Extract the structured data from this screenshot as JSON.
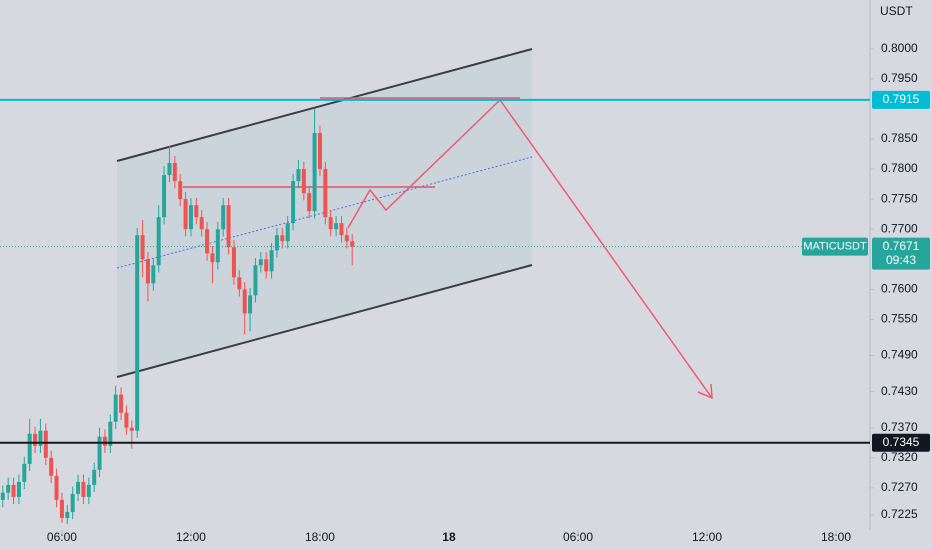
{
  "chart_data": {
    "type": "candlestick",
    "symbol": "MATICUSDT",
    "currency": "USDT",
    "x": [
      3.25,
      3.5,
      3.75,
      4,
      4.25,
      4.5,
      4.75,
      5,
      5.25,
      5.5,
      5.75,
      6,
      6.25,
      6.5,
      6.75,
      7,
      7.25,
      7.5,
      7.75,
      8,
      8.25,
      8.5,
      8.75,
      9,
      9.25,
      9.5,
      9.75,
      10,
      10.25,
      10.5,
      10.75,
      11,
      11.25,
      11.5,
      11.75,
      12,
      12.25,
      12.5,
      12.75,
      13,
      13.25,
      13.5,
      13.75,
      14,
      14.25,
      14.5,
      14.75,
      15,
      15.25,
      15.5,
      15.75,
      16,
      16.25,
      16.5,
      16.75,
      17,
      17.25,
      17.5,
      17.75,
      18,
      18.25,
      18.5,
      18.75,
      19,
      19.25,
      19.5
    ],
    "open": [
      0.725,
      0.7262,
      0.7275,
      0.7255,
      0.728,
      0.731,
      0.736,
      0.734,
      0.7365,
      0.732,
      0.729,
      0.725,
      0.722,
      0.723,
      0.726,
      0.728,
      0.7255,
      0.7275,
      0.73,
      0.7355,
      0.734,
      0.738,
      0.7425,
      0.7395,
      0.737,
      0.7365,
      0.769,
      0.765,
      0.761,
      0.764,
      0.772,
      0.779,
      0.781,
      0.778,
      0.775,
      0.77,
      0.774,
      0.772,
      0.77,
      0.766,
      0.7645,
      0.77,
      0.774,
      0.767,
      0.762,
      0.76,
      0.756,
      0.759,
      0.764,
      0.765,
      0.763,
      0.7665,
      0.769,
      0.768,
      0.771,
      0.778,
      0.78,
      0.776,
      0.773,
      0.786,
      0.78,
      0.772,
      0.77,
      0.771,
      0.769,
      0.768
    ],
    "high": [
      0.7274,
      0.7287,
      0.7287,
      0.7292,
      0.7322,
      0.7385,
      0.7372,
      0.7385,
      0.7377,
      0.7332,
      0.7302,
      0.7262,
      0.7242,
      0.7272,
      0.7292,
      0.7292,
      0.7287,
      0.7312,
      0.737,
      0.7367,
      0.7392,
      0.744,
      0.7437,
      0.7407,
      0.7382,
      0.7702,
      0.7715,
      0.7662,
      0.7652,
      0.774,
      0.7805,
      0.7838,
      0.7822,
      0.7792,
      0.7762,
      0.7752,
      0.7752,
      0.7732,
      0.7712,
      0.7672,
      0.7712,
      0.7752,
      0.7752,
      0.7682,
      0.7632,
      0.7612,
      0.7602,
      0.7652,
      0.7662,
      0.7662,
      0.7677,
      0.7702,
      0.7702,
      0.7722,
      0.7792,
      0.7815,
      0.7812,
      0.7772,
      0.79,
      0.7872,
      0.7812,
      0.7732,
      0.7722,
      0.7722,
      0.7702,
      0.7692
    ],
    "low": [
      0.7238,
      0.725,
      0.7243,
      0.7243,
      0.7268,
      0.7298,
      0.7328,
      0.7328,
      0.7308,
      0.7278,
      0.7238,
      0.7212,
      0.721,
      0.7218,
      0.7248,
      0.7243,
      0.7243,
      0.7263,
      0.7288,
      0.7328,
      0.7328,
      0.7368,
      0.7383,
      0.7358,
      0.7335,
      0.7353,
      0.762,
      0.758,
      0.7598,
      0.7628,
      0.7708,
      0.7778,
      0.7768,
      0.7738,
      0.7688,
      0.7688,
      0.7708,
      0.7688,
      0.7648,
      0.761,
      0.7633,
      0.7688,
      0.7658,
      0.7608,
      0.7588,
      0.7525,
      0.753,
      0.7578,
      0.7628,
      0.7618,
      0.7618,
      0.7653,
      0.7668,
      0.7668,
      0.7698,
      0.7768,
      0.7748,
      0.7718,
      0.7718,
      0.7788,
      0.7708,
      0.7688,
      0.7688,
      0.7678,
      0.7668,
      0.764
    ],
    "close": [
      0.7262,
      0.7275,
      0.7255,
      0.728,
      0.731,
      0.736,
      0.734,
      0.7365,
      0.732,
      0.729,
      0.725,
      0.722,
      0.723,
      0.726,
      0.728,
      0.7255,
      0.7275,
      0.73,
      0.7355,
      0.734,
      0.738,
      0.7425,
      0.7395,
      0.737,
      0.7365,
      0.769,
      0.765,
      0.761,
      0.764,
      0.772,
      0.779,
      0.781,
      0.778,
      0.775,
      0.77,
      0.774,
      0.772,
      0.77,
      0.766,
      0.7645,
      0.77,
      0.774,
      0.767,
      0.762,
      0.76,
      0.756,
      0.759,
      0.764,
      0.765,
      0.763,
      0.7665,
      0.769,
      0.768,
      0.771,
      0.778,
      0.78,
      0.776,
      0.773,
      0.786,
      0.78,
      0.772,
      0.77,
      0.771,
      0.769,
      0.768,
      0.7671
    ],
    "up_color": "#26a69a",
    "down_color": "#ef5350",
    "xlim": [
      3.12,
      43.58
    ],
    "xticks": [
      {
        "value": 6,
        "label": "06:00"
      },
      {
        "value": 12,
        "label": "12:00"
      },
      {
        "value": 18,
        "label": "18:00"
      },
      {
        "value": 24,
        "label": "18"
      },
      {
        "value": 30,
        "label": "06:00"
      },
      {
        "value": 36,
        "label": "12:00"
      },
      {
        "value": 42,
        "label": "18:00"
      }
    ],
    "ylim": [
      0.72,
      0.8081
    ],
    "yticks": [
      {
        "value": 0.8,
        "label": "0.8000"
      },
      {
        "value": 0.795,
        "label": "0.7950"
      },
      {
        "value": 0.785,
        "label": "0.7850"
      },
      {
        "value": 0.78,
        "label": "0.7800"
      },
      {
        "value": 0.775,
        "label": "0.7750"
      },
      {
        "value": 0.77,
        "label": "0.7700"
      },
      {
        "value": 0.76,
        "label": "0.7600"
      },
      {
        "value": 0.755,
        "label": "0.7550"
      },
      {
        "value": 0.749,
        "label": "0.7490"
      },
      {
        "value": 0.743,
        "label": "0.7430"
      },
      {
        "value": 0.737,
        "label": "0.7370"
      },
      {
        "value": 0.732,
        "label": "0.7320"
      },
      {
        "value": 0.727,
        "label": "0.7270"
      },
      {
        "value": 0.7225,
        "label": "0.7225"
      }
    ],
    "levels": [
      {
        "value": 0.7915,
        "color": "#00bcd4"
      },
      {
        "value": 0.7345,
        "color": "#131722"
      }
    ],
    "last_price": 0.7671,
    "countdown": "09:43"
  }
}
